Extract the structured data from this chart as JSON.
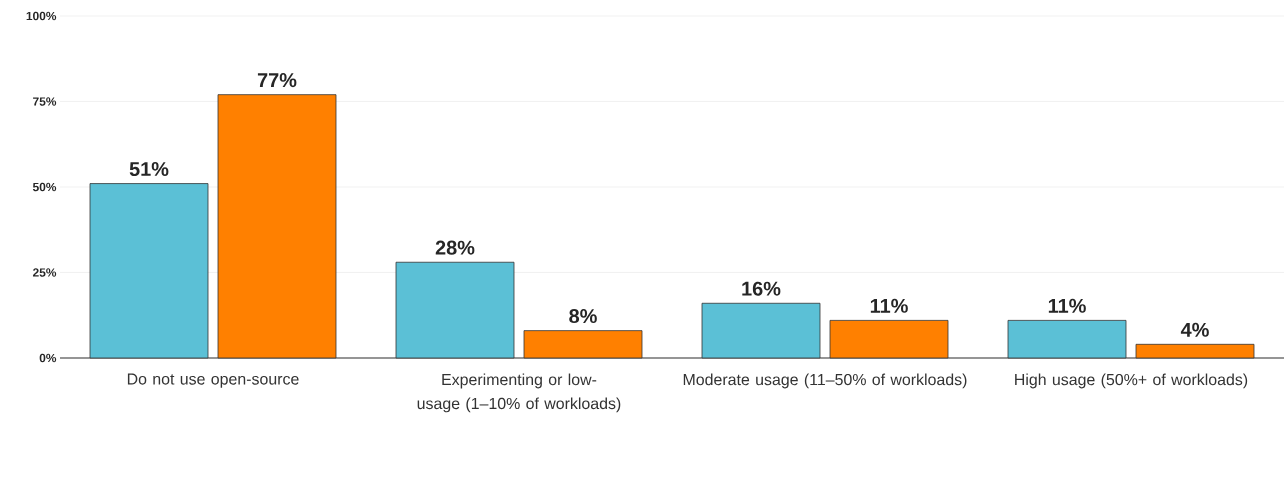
{
  "chart_data": {
    "type": "bar",
    "categories": [
      "Do not use open-source",
      "Experimenting or low-usage (1–10% of workloads)",
      "Moderate usage (11–50% of workloads)",
      "High usage (50%+ of workloads)"
    ],
    "series": [
      {
        "color": "#5bc0d6",
        "values": [
          51,
          28,
          16,
          11
        ],
        "value_labels": [
          "51%",
          "28%",
          "16%",
          "11%"
        ]
      },
      {
        "color": "#ff8000",
        "values": [
          77,
          8,
          11,
          4
        ],
        "value_labels": [
          "77%",
          "8%",
          "11%",
          "4%"
        ]
      }
    ],
    "ylim": [
      0,
      100
    ],
    "yticks": [
      {
        "value": 0,
        "label": "0%"
      },
      {
        "value": 25,
        "label": "25%"
      },
      {
        "value": 50,
        "label": "50%"
      },
      {
        "value": 75,
        "label": "75%"
      },
      {
        "value": 100,
        "label": "100%"
      }
    ],
    "grid": "y"
  }
}
